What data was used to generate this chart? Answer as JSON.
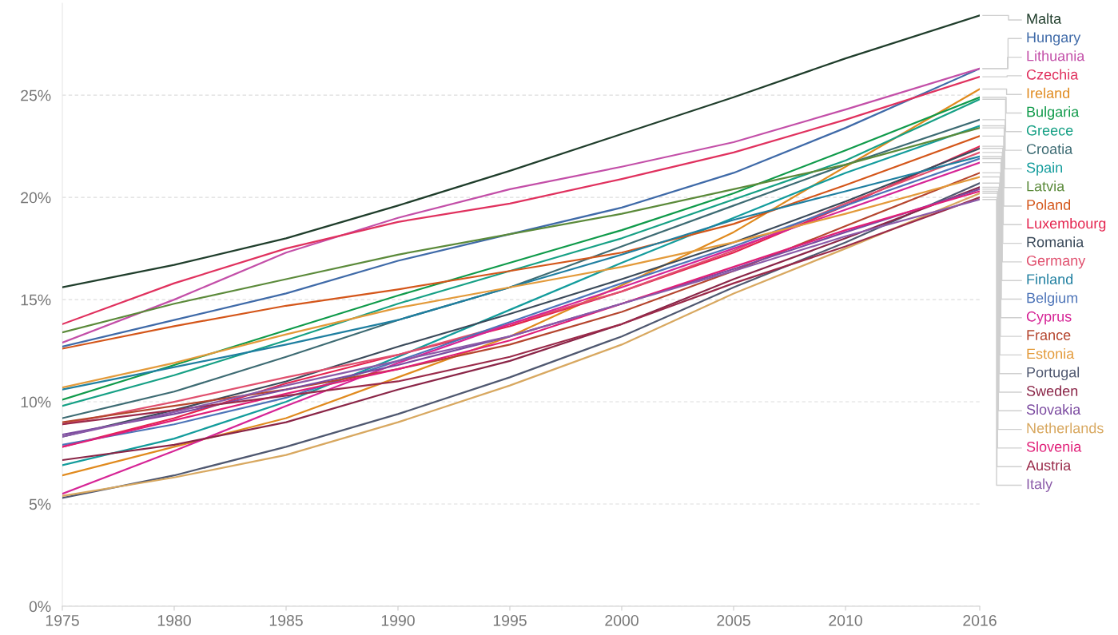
{
  "chart_data": {
    "type": "line",
    "x": [
      1975,
      1980,
      1985,
      1990,
      1995,
      2000,
      2005,
      2010,
      2016
    ],
    "xlim": [
      1975,
      2016
    ],
    "xticks": [
      1975,
      1980,
      1985,
      1990,
      1995,
      2000,
      2005,
      2010,
      2016
    ],
    "ylim": [
      0,
      29.5
    ],
    "yticks": [
      {
        "value": 0,
        "label": "0%"
      },
      {
        "value": 5,
        "label": "5%"
      },
      {
        "value": 10,
        "label": "10%"
      },
      {
        "value": 15,
        "label": "15%"
      },
      {
        "value": 20,
        "label": "20%"
      },
      {
        "value": 25,
        "label": "25%"
      }
    ],
    "grid": "y",
    "legend": false,
    "marker": "none",
    "line_style": "solid",
    "series": [
      {
        "name": "Malta",
        "color": "#1f3d2b",
        "values": [
          15.6,
          16.7,
          18.0,
          19.6,
          21.3,
          23.1,
          24.9,
          26.8,
          28.9
        ]
      },
      {
        "name": "Hungary",
        "color": "#3f6aa8",
        "values": [
          12.7,
          14.0,
          15.3,
          16.9,
          18.2,
          19.5,
          21.2,
          23.4,
          26.3
        ]
      },
      {
        "name": "Lithuania",
        "color": "#c34fa8",
        "values": [
          12.9,
          15.0,
          17.3,
          19.0,
          20.4,
          21.5,
          22.7,
          24.3,
          26.3
        ]
      },
      {
        "name": "Czechia",
        "color": "#e0315e",
        "values": [
          13.8,
          15.8,
          17.5,
          18.8,
          19.7,
          20.9,
          22.2,
          23.8,
          25.9
        ]
      },
      {
        "name": "Ireland",
        "color": "#e08a1e",
        "values": [
          6.4,
          7.8,
          9.2,
          11.2,
          13.2,
          15.7,
          18.3,
          21.5,
          25.3
        ]
      },
      {
        "name": "Bulgaria",
        "color": "#0f9a4a",
        "values": [
          10.1,
          11.8,
          13.5,
          15.2,
          16.8,
          18.4,
          20.2,
          22.3,
          24.9
        ]
      },
      {
        "name": "Greece",
        "color": "#16a085",
        "values": [
          9.8,
          11.3,
          13.0,
          14.8,
          16.4,
          18.0,
          19.9,
          21.8,
          24.8
        ]
      },
      {
        "name": "Croatia",
        "color": "#3d6b73",
        "values": [
          9.2,
          10.5,
          12.2,
          14.0,
          15.6,
          17.6,
          19.6,
          21.6,
          23.8
        ]
      },
      {
        "name": "Spain",
        "color": "#139c9c",
        "values": [
          6.9,
          8.2,
          10.0,
          12.2,
          14.5,
          16.8,
          19.0,
          21.2,
          23.5
        ]
      },
      {
        "name": "Latvia",
        "color": "#5b8a3a",
        "values": [
          13.4,
          14.8,
          16.0,
          17.2,
          18.2,
          19.2,
          20.4,
          21.6,
          23.4
        ]
      },
      {
        "name": "Poland",
        "color": "#d4561a",
        "values": [
          12.6,
          13.7,
          14.7,
          15.5,
          16.4,
          17.3,
          18.7,
          20.6,
          23.0
        ]
      },
      {
        "name": "Luxembourg",
        "color": "#e4244f",
        "values": [
          7.8,
          9.2,
          10.9,
          12.3,
          13.7,
          15.4,
          17.3,
          19.6,
          22.5
        ]
      },
      {
        "name": "Romania",
        "color": "#3b4a5a",
        "values": [
          8.3,
          9.6,
          11.0,
          12.7,
          14.3,
          16.0,
          17.8,
          19.8,
          22.4
        ]
      },
      {
        "name": "Germany",
        "color": "#e0506e",
        "values": [
          8.9,
          10.0,
          11.2,
          12.3,
          13.8,
          15.4,
          17.4,
          19.7,
          22.2
        ]
      },
      {
        "name": "Finland",
        "color": "#1f7fa0",
        "values": [
          10.6,
          11.7,
          12.8,
          14.0,
          15.6,
          17.2,
          18.9,
          20.3,
          22.0
        ]
      },
      {
        "name": "Belgium",
        "color": "#4d74b8",
        "values": [
          7.9,
          8.9,
          10.2,
          12.0,
          13.9,
          15.8,
          17.6,
          19.6,
          21.9
        ]
      },
      {
        "name": "Cyprus",
        "color": "#d62596",
        "values": [
          5.5,
          7.6,
          9.8,
          11.9,
          13.8,
          15.6,
          17.5,
          19.4,
          21.7
        ]
      },
      {
        "name": "France",
        "color": "#b5452e",
        "values": [
          9.0,
          9.8,
          10.6,
          11.6,
          12.8,
          14.4,
          16.4,
          18.6,
          21.2
        ]
      },
      {
        "name": "Estonia",
        "color": "#e39a3a",
        "values": [
          10.7,
          11.9,
          13.3,
          14.6,
          15.6,
          16.6,
          17.8,
          19.2,
          21.0
        ]
      },
      {
        "name": "Portugal",
        "color": "#4f5870",
        "values": [
          5.3,
          6.4,
          7.8,
          9.4,
          11.2,
          13.2,
          15.6,
          17.8,
          20.7
        ]
      },
      {
        "name": "Sweden",
        "color": "#8a2547",
        "values": [
          7.15,
          7.9,
          9.0,
          10.6,
          12.0,
          13.8,
          16.0,
          18.0,
          20.5
        ]
      },
      {
        "name": "Slovakia",
        "color": "#7b4aa0",
        "values": [
          8.4,
          9.4,
          10.6,
          11.8,
          13.2,
          14.8,
          16.5,
          18.3,
          20.4
        ]
      },
      {
        "name": "Netherlands",
        "color": "#d8a860",
        "values": [
          5.4,
          6.3,
          7.4,
          9.0,
          10.8,
          12.8,
          15.3,
          17.5,
          20.2
        ]
      },
      {
        "name": "Slovenia",
        "color": "#e01f78",
        "values": [
          7.8,
          9.1,
          10.4,
          11.6,
          13.0,
          14.8,
          16.6,
          18.4,
          20.3
        ]
      },
      {
        "name": "Austria",
        "color": "#9a2a4a",
        "values": [
          8.9,
          9.6,
          10.3,
          11.0,
          12.2,
          13.8,
          15.8,
          17.6,
          20.0
        ]
      },
      {
        "name": "Italy",
        "color": "#8a5aa8",
        "values": [
          8.3,
          9.5,
          10.8,
          12.0,
          13.2,
          14.8,
          16.4,
          18.1,
          19.9
        ]
      }
    ]
  }
}
